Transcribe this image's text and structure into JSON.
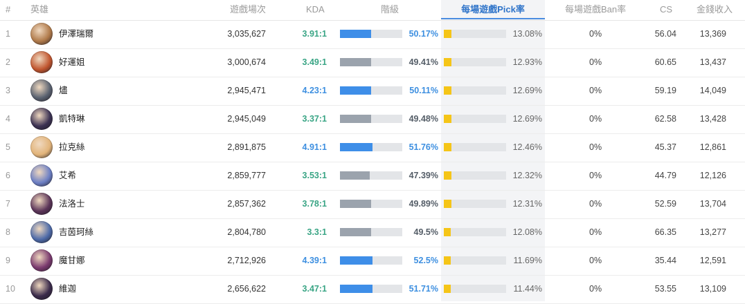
{
  "headers": {
    "rank": "#",
    "hero": "英雄",
    "games": "遊戲場次",
    "kda": "KDA",
    "tier": "階級",
    "pick_rate": "每場遊戲Pick率",
    "ban_rate": "每場遊戲Ban率",
    "cs": "CS",
    "gold": "金錢收入"
  },
  "colors": {
    "accent_blue": "#3e8ee8",
    "grey_bar": "#9ba3ad",
    "pick_yellow": "#f5c518",
    "kda_green": "#3aa585",
    "kda_blue": "#3d8fe0"
  },
  "rows": [
    {
      "rank": "1",
      "name": "伊澤瑞爾",
      "avatar_icon": "champion-portrait-icon",
      "avatar_color": "#b07a4a",
      "games": "3,035,627",
      "kda": "3.91:1",
      "kda_style": "green",
      "win_rate": "50.17%",
      "win_rate_value": 50.17,
      "win_style": "blue",
      "pick_rate": "13.08%",
      "pick_rate_value": 13.08,
      "ban_rate": "0%",
      "cs": "56.04",
      "gold": "13,369"
    },
    {
      "rank": "2",
      "name": "好運姐",
      "avatar_icon": "champion-portrait-icon",
      "avatar_color": "#c0552e",
      "games": "3,000,674",
      "kda": "3.49:1",
      "kda_style": "green",
      "win_rate": "49.41%",
      "win_rate_value": 49.41,
      "win_style": "grey",
      "pick_rate": "12.93%",
      "pick_rate_value": 12.93,
      "ban_rate": "0%",
      "cs": "60.65",
      "gold": "13,437"
    },
    {
      "rank": "3",
      "name": "燼",
      "avatar_icon": "champion-portrait-icon",
      "avatar_color": "#5a6270",
      "games": "2,945,471",
      "kda": "4.23:1",
      "kda_style": "blue",
      "win_rate": "50.11%",
      "win_rate_value": 50.11,
      "win_style": "blue",
      "pick_rate": "12.69%",
      "pick_rate_value": 12.69,
      "ban_rate": "0%",
      "cs": "59.19",
      "gold": "14,049"
    },
    {
      "rank": "4",
      "name": "凱特琳",
      "avatar_icon": "champion-portrait-icon",
      "avatar_color": "#3b3152",
      "games": "2,945,049",
      "kda": "3.37:1",
      "kda_style": "green",
      "win_rate": "49.48%",
      "win_rate_value": 49.48,
      "win_style": "grey",
      "pick_rate": "12.69%",
      "pick_rate_value": 12.69,
      "ban_rate": "0%",
      "cs": "62.58",
      "gold": "13,428"
    },
    {
      "rank": "5",
      "name": "拉克絲",
      "avatar_icon": "champion-portrait-icon",
      "avatar_color": "#e2b47a",
      "games": "2,891,875",
      "kda": "4.91:1",
      "kda_style": "blue",
      "win_rate": "51.76%",
      "win_rate_value": 51.76,
      "win_style": "blue",
      "pick_rate": "12.46%",
      "pick_rate_value": 12.46,
      "ban_rate": "0%",
      "cs": "45.37",
      "gold": "12,861"
    },
    {
      "rank": "6",
      "name": "艾希",
      "avatar_icon": "champion-portrait-icon",
      "avatar_color": "#6c7fc4",
      "games": "2,859,777",
      "kda": "3.53:1",
      "kda_style": "green",
      "win_rate": "47.39%",
      "win_rate_value": 47.39,
      "win_style": "grey",
      "pick_rate": "12.32%",
      "pick_rate_value": 12.32,
      "ban_rate": "0%",
      "cs": "44.79",
      "gold": "12,126"
    },
    {
      "rank": "7",
      "name": "法洛士",
      "avatar_icon": "champion-portrait-icon",
      "avatar_color": "#5b3458",
      "games": "2,857,362",
      "kda": "3.78:1",
      "kda_style": "green",
      "win_rate": "49.89%",
      "win_rate_value": 49.89,
      "win_style": "grey",
      "pick_rate": "12.31%",
      "pick_rate_value": 12.31,
      "ban_rate": "0%",
      "cs": "52.59",
      "gold": "13,704"
    },
    {
      "rank": "8",
      "name": "吉茵珂絲",
      "avatar_icon": "champion-portrait-icon",
      "avatar_color": "#4d6aa8",
      "games": "2,804,780",
      "kda": "3.3:1",
      "kda_style": "green",
      "win_rate": "49.5%",
      "win_rate_value": 49.5,
      "win_style": "grey",
      "pick_rate": "12.08%",
      "pick_rate_value": 12.08,
      "ban_rate": "0%",
      "cs": "66.35",
      "gold": "13,277"
    },
    {
      "rank": "9",
      "name": "魔甘娜",
      "avatar_icon": "champion-portrait-icon",
      "avatar_color": "#7a3a6e",
      "games": "2,712,926",
      "kda": "4.39:1",
      "kda_style": "blue",
      "win_rate": "52.5%",
      "win_rate_value": 52.5,
      "win_style": "blue",
      "pick_rate": "11.69%",
      "pick_rate_value": 11.69,
      "ban_rate": "0%",
      "cs": "35.44",
      "gold": "12,591"
    },
    {
      "rank": "10",
      "name": "維迦",
      "avatar_icon": "champion-portrait-icon",
      "avatar_color": "#3a2a4a",
      "games": "2,656,622",
      "kda": "3.47:1",
      "kda_style": "green",
      "win_rate": "51.71%",
      "win_rate_value": 51.71,
      "win_style": "blue",
      "pick_rate": "11.44%",
      "pick_rate_value": 11.44,
      "ban_rate": "0%",
      "cs": "53.55",
      "gold": "13,109"
    }
  ]
}
